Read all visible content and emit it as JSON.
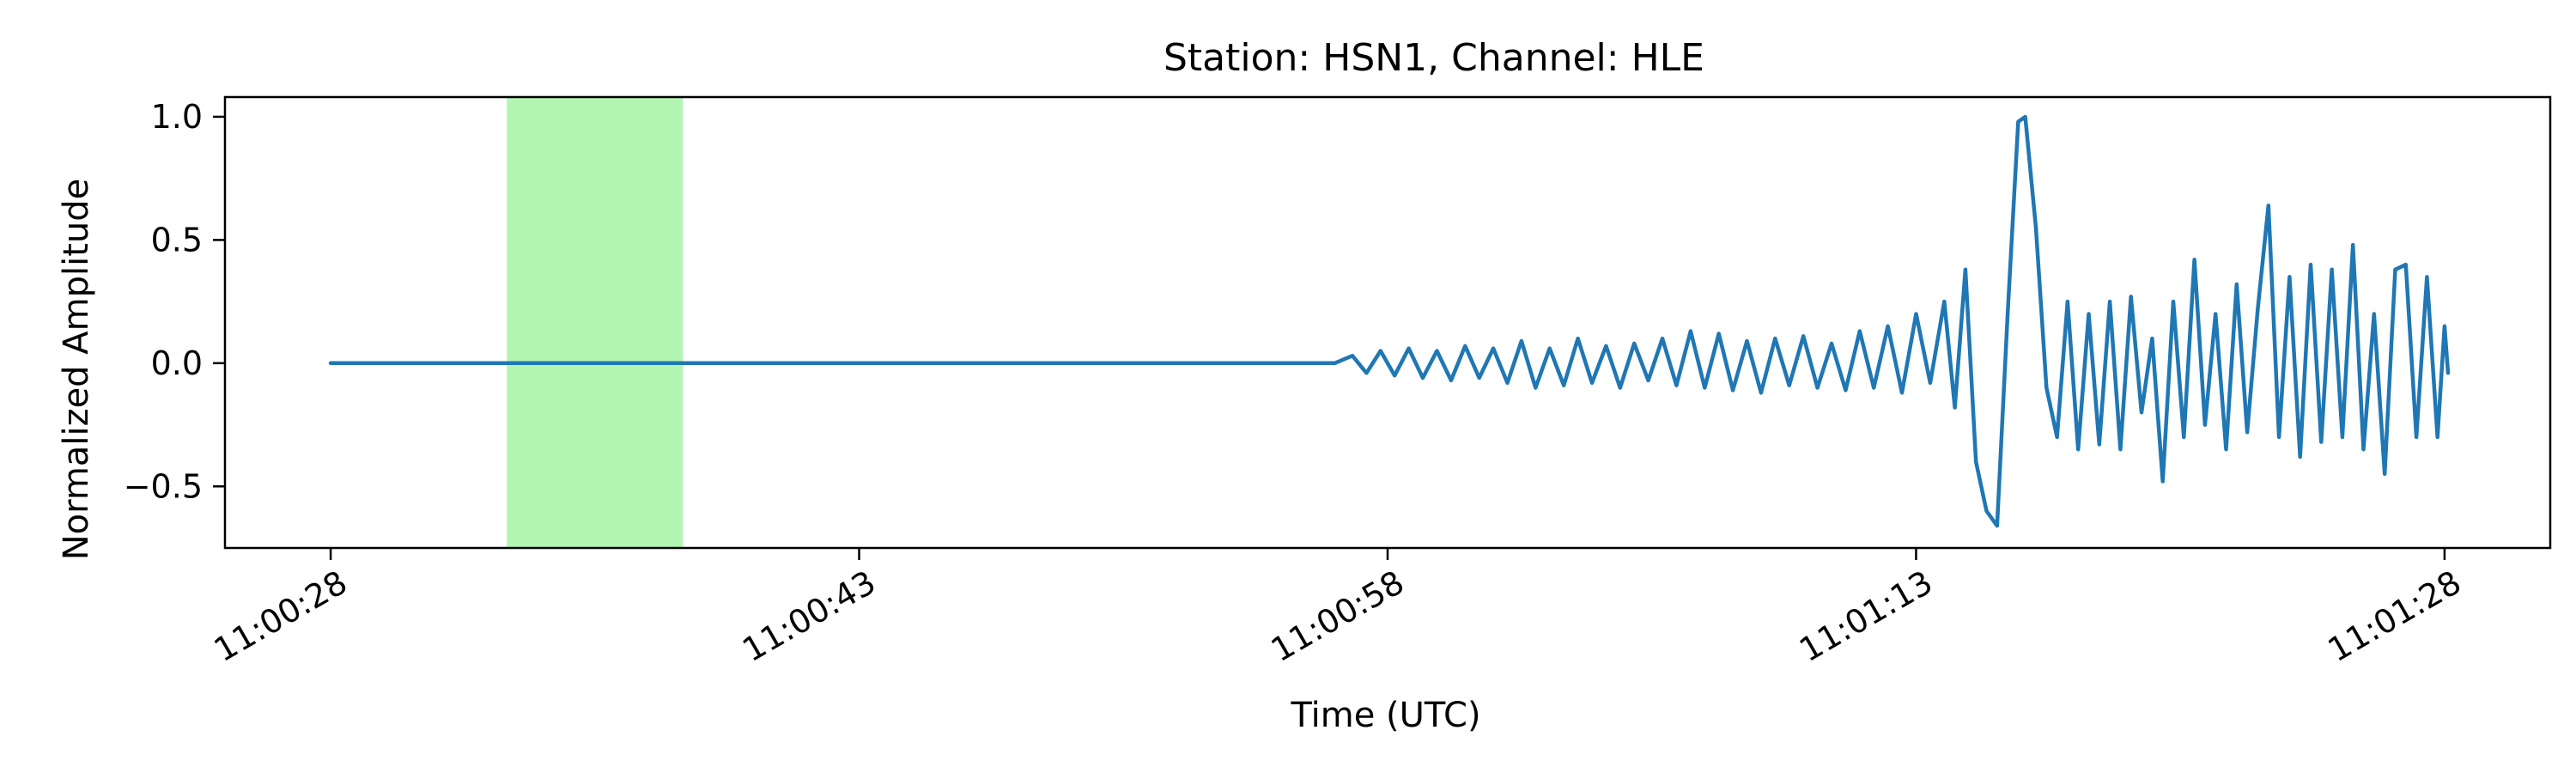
{
  "chart_data": {
    "type": "line",
    "title": "Station: HSN1, Channel: HLE",
    "xlabel": "Time (UTC)",
    "ylabel": "Normalized Amplitude",
    "xlim": [
      "11:00:25",
      "11:01:31"
    ],
    "ylim": [
      -0.75,
      1.08
    ],
    "x_ticks": [
      "11:00:28",
      "11:00:43",
      "11:00:58",
      "11:01:13",
      "11:01:28"
    ],
    "y_ticks": [
      {
        "value": 1.0,
        "label": "1.0"
      },
      {
        "value": 0.5,
        "label": "0.5"
      },
      {
        "value": 0.0,
        "label": "0.0"
      },
      {
        "value": -0.5,
        "label": "−0.5"
      }
    ],
    "highlight_window": {
      "start": "11:00:33",
      "end": "11:00:38",
      "color": "#b3f5b3"
    },
    "grid": false,
    "series": [
      {
        "color": "#1f77b4",
        "points": [
          [
            "11:00:28",
            0.0
          ],
          [
            "11:00:33",
            0.0
          ],
          [
            "11:00:38",
            0.0
          ],
          [
            "11:00:45",
            0.0
          ],
          [
            "11:00:52",
            0.0
          ],
          [
            "11:00:56.5",
            0.0
          ],
          [
            "11:00:57.0",
            0.03
          ],
          [
            "11:00:57.4",
            -0.04
          ],
          [
            "11:00:57.8",
            0.05
          ],
          [
            "11:00:58.2",
            -0.05
          ],
          [
            "11:00:58.6",
            0.06
          ],
          [
            "11:00:59.0",
            -0.06
          ],
          [
            "11:00:59.4",
            0.05
          ],
          [
            "11:00:59.8",
            -0.07
          ],
          [
            "11:01:00.2",
            0.07
          ],
          [
            "11:01:00.6",
            -0.06
          ],
          [
            "11:01:01.0",
            0.06
          ],
          [
            "11:01:01.4",
            -0.08
          ],
          [
            "11:01:01.8",
            0.09
          ],
          [
            "11:01:02.2",
            -0.1
          ],
          [
            "11:01:02.6",
            0.06
          ],
          [
            "11:01:03.0",
            -0.09
          ],
          [
            "11:01:03.4",
            0.1
          ],
          [
            "11:01:03.8",
            -0.08
          ],
          [
            "11:01:04.2",
            0.07
          ],
          [
            "11:01:04.6",
            -0.1
          ],
          [
            "11:01:05.0",
            0.08
          ],
          [
            "11:01:05.4",
            -0.07
          ],
          [
            "11:01:05.8",
            0.1
          ],
          [
            "11:01:06.2",
            -0.09
          ],
          [
            "11:01:06.6",
            0.13
          ],
          [
            "11:01:07.0",
            -0.1
          ],
          [
            "11:01:07.4",
            0.12
          ],
          [
            "11:01:07.8",
            -0.11
          ],
          [
            "11:01:08.2",
            0.09
          ],
          [
            "11:01:08.6",
            -0.12
          ],
          [
            "11:01:09.0",
            0.1
          ],
          [
            "11:01:09.4",
            -0.09
          ],
          [
            "11:01:09.8",
            0.11
          ],
          [
            "11:01:10.2",
            -0.1
          ],
          [
            "11:01:10.6",
            0.08
          ],
          [
            "11:01:11.0",
            -0.11
          ],
          [
            "11:01:11.4",
            0.13
          ],
          [
            "11:01:11.8",
            -0.1
          ],
          [
            "11:01:12.2",
            0.15
          ],
          [
            "11:01:12.6",
            -0.12
          ],
          [
            "11:01:13.0",
            0.2
          ],
          [
            "11:01:13.4",
            -0.08
          ],
          [
            "11:01:13.8",
            0.25
          ],
          [
            "11:01:14.1",
            -0.18
          ],
          [
            "11:01:14.4",
            0.38
          ],
          [
            "11:01:14.7",
            -0.4
          ],
          [
            "11:01:15.0",
            -0.6
          ],
          [
            "11:01:15.3",
            -0.66
          ],
          [
            "11:01:15.6",
            0.2
          ],
          [
            "11:01:15.9",
            0.98
          ],
          [
            "11:01:16.1",
            1.0
          ],
          [
            "11:01:16.4",
            0.55
          ],
          [
            "11:01:16.7",
            -0.1
          ],
          [
            "11:01:17.0",
            -0.3
          ],
          [
            "11:01:17.3",
            0.25
          ],
          [
            "11:01:17.6",
            -0.35
          ],
          [
            "11:01:17.9",
            0.2
          ],
          [
            "11:01:18.2",
            -0.33
          ],
          [
            "11:01:18.5",
            0.25
          ],
          [
            "11:01:18.8",
            -0.35
          ],
          [
            "11:01:19.1",
            0.27
          ],
          [
            "11:01:19.4",
            -0.2
          ],
          [
            "11:01:19.7",
            0.1
          ],
          [
            "11:01:20.0",
            -0.48
          ],
          [
            "11:01:20.3",
            0.25
          ],
          [
            "11:01:20.6",
            -0.3
          ],
          [
            "11:01:20.9",
            0.42
          ],
          [
            "11:01:21.2",
            -0.25
          ],
          [
            "11:01:21.5",
            0.2
          ],
          [
            "11:01:21.8",
            -0.35
          ],
          [
            "11:01:22.1",
            0.32
          ],
          [
            "11:01:22.4",
            -0.28
          ],
          [
            "11:01:22.7",
            0.22
          ],
          [
            "11:01:23.0",
            0.64
          ],
          [
            "11:01:23.3",
            -0.3
          ],
          [
            "11:01:23.6",
            0.35
          ],
          [
            "11:01:23.9",
            -0.38
          ],
          [
            "11:01:24.2",
            0.4
          ],
          [
            "11:01:24.5",
            -0.32
          ],
          [
            "11:01:24.8",
            0.38
          ],
          [
            "11:01:25.1",
            -0.3
          ],
          [
            "11:01:25.4",
            0.48
          ],
          [
            "11:01:25.7",
            -0.35
          ],
          [
            "11:01:26.0",
            0.2
          ],
          [
            "11:01:26.3",
            -0.45
          ],
          [
            "11:01:26.6",
            0.38
          ],
          [
            "11:01:26.9",
            0.4
          ],
          [
            "11:01:27.2",
            -0.3
          ],
          [
            "11:01:27.5",
            0.35
          ],
          [
            "11:01:27.8",
            -0.3
          ],
          [
            "11:01:28.0",
            0.15
          ],
          [
            "11:01:28.1",
            -0.04
          ]
        ]
      }
    ]
  }
}
